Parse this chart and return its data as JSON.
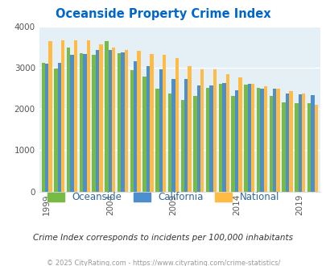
{
  "title": "Oceanside Property Crime Index",
  "title_color": "#0066cc",
  "subtitle": "Crime Index corresponds to incidents per 100,000 inhabitants",
  "footer": "© 2025 CityRating.com - https://www.cityrating.com/crime-statistics/",
  "years": [
    1999,
    2000,
    2001,
    2002,
    2003,
    2004,
    2005,
    2006,
    2007,
    2008,
    2009,
    2010,
    2011,
    2012,
    2013,
    2014,
    2015,
    2016,
    2017,
    2018,
    2019,
    2020
  ],
  "oceanside": [
    3120,
    2980,
    3500,
    3360,
    3310,
    3640,
    3360,
    2940,
    2780,
    2490,
    2370,
    2230,
    2310,
    2510,
    2620,
    2310,
    2590,
    2510,
    2310,
    2170,
    2150,
    2150
  ],
  "california": [
    3110,
    3120,
    3310,
    3340,
    3430,
    3430,
    3370,
    3160,
    3050,
    2960,
    2730,
    2720,
    2570,
    2580,
    2640,
    2460,
    2620,
    2500,
    2490,
    2380,
    2350,
    2340
  ],
  "national": [
    3640,
    3670,
    3660,
    3660,
    3570,
    3500,
    3430,
    3420,
    3340,
    3320,
    3240,
    3050,
    2970,
    2960,
    2850,
    2770,
    2620,
    2550,
    2490,
    2440,
    2370,
    2100
  ],
  "bar_colors": {
    "oceanside": "#77bb44",
    "california": "#4d8fcc",
    "national": "#ffbb44"
  },
  "ylim": [
    0,
    4000
  ],
  "yticks": [
    0,
    1000,
    2000,
    3000,
    4000
  ],
  "xtick_years": [
    1999,
    2004,
    2009,
    2014,
    2019
  ],
  "bg_color": "#e4f0f5",
  "legend_labels": [
    "Oceanside",
    "California",
    "National"
  ],
  "legend_colors": [
    "#77bb44",
    "#4d8fcc",
    "#ffbb44"
  ],
  "legend_text_color": "#336699",
  "subtitle_color": "#333333",
  "footer_color": "#999999"
}
